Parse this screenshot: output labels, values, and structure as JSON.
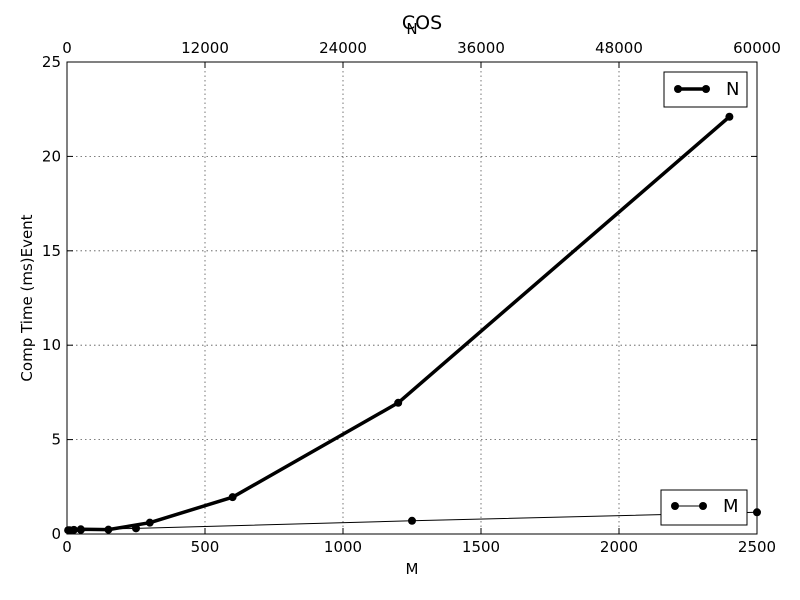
{
  "chart_data": {
    "type": "line",
    "title": "COS",
    "ylabel": "Comp Time (ms)Event",
    "xlabel_bottom": "M",
    "xlabel_top": "N",
    "ylim": [
      0,
      25
    ],
    "yticks": [
      0,
      5,
      10,
      15,
      20,
      25
    ],
    "xlim_bottom": [
      0,
      2500
    ],
    "xticks_bottom": [
      0,
      500,
      1000,
      1500,
      2000,
      2500
    ],
    "xlim_top": [
      0,
      60000
    ],
    "xticks_top": [
      0,
      12000,
      24000,
      36000,
      48000,
      60000
    ],
    "grid": true,
    "series": [
      {
        "name": "N",
        "axis": "top",
        "color": "#000000",
        "x": [
          100,
          600,
          1200,
          3600,
          7200,
          14400,
          28800,
          57600
        ],
        "y": [
          0.2,
          0.22,
          0.25,
          0.23,
          0.6,
          1.95,
          6.95,
          22.1
        ],
        "legend_position": "top-right"
      },
      {
        "name": "M",
        "axis": "bottom",
        "color": "#000000",
        "x": [
          10,
          50,
          250,
          1250,
          2500
        ],
        "y": [
          0.2,
          0.22,
          0.3,
          0.7,
          1.15
        ],
        "legend_position": "bottom-right"
      }
    ]
  }
}
